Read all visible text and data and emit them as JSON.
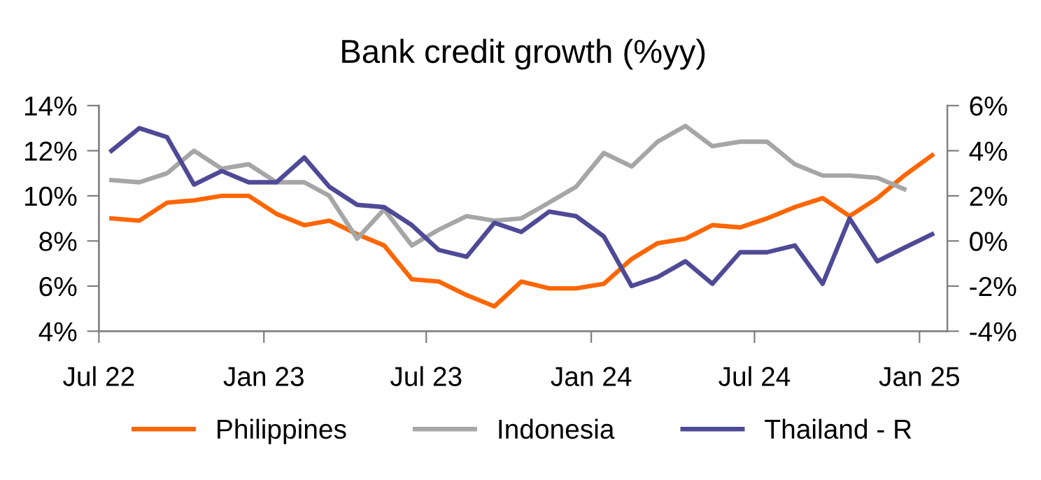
{
  "chart_data": {
    "type": "line",
    "title": "Bank credit growth (%yy)",
    "x": [
      "2022-07-15",
      "2022-08-15",
      "2022-09-15",
      "2022-10-15",
      "2022-11-15",
      "2022-12-15",
      "2023-01-15",
      "2023-02-15",
      "2023-03-15",
      "2023-04-15",
      "2023-05-15",
      "2023-06-15",
      "2023-07-15",
      "2023-08-15",
      "2023-09-15",
      "2023-10-15",
      "2023-11-15",
      "2023-12-15",
      "2024-01-15",
      "2024-02-15",
      "2024-03-15",
      "2024-04-15",
      "2024-05-15",
      "2024-06-15",
      "2024-07-15",
      "2024-08-15",
      "2024-09-15",
      "2024-10-15",
      "2024-11-15",
      "2024-12-15",
      "2025-01-15"
    ],
    "series": [
      {
        "name": "Philippines",
        "color": "#ff6600",
        "values": [
          9.0,
          8.9,
          9.7,
          9.8,
          10.0,
          10.0,
          9.2,
          8.7,
          8.9,
          8.3,
          7.8,
          6.3,
          6.2,
          5.6,
          5.1,
          6.2,
          5.9,
          5.9,
          6.1,
          7.2,
          7.9,
          8.1,
          8.7,
          8.6,
          9.0,
          9.5,
          9.9,
          9.1,
          9.9,
          10.9,
          11.8
        ]
      },
      {
        "name": "Indonesia",
        "color": "#a6a6a6",
        "values": [
          10.7,
          10.6,
          11.0,
          12.0,
          11.2,
          11.4,
          10.6,
          10.6,
          10.0,
          8.1,
          9.4,
          7.8,
          8.5,
          9.1,
          8.9,
          9.0,
          9.7,
          10.4,
          11.9,
          11.3,
          12.4,
          13.1,
          12.2,
          12.4,
          12.4,
          11.4,
          10.9,
          10.9,
          10.8,
          10.3,
          null
        ]
      },
      {
        "name": "Thailand - R",
        "color": "#4f4a96",
        "axis": "y2",
        "values": [
          4.0,
          5.0,
          4.6,
          2.5,
          3.1,
          2.6,
          2.6,
          3.7,
          2.4,
          1.6,
          1.5,
          0.7,
          -0.4,
          -0.7,
          0.8,
          0.4,
          1.3,
          1.1,
          0.2,
          -2.0,
          -1.6,
          -0.9,
          -1.9,
          -0.5,
          -0.5,
          -0.2,
          -1.9,
          1.0,
          -0.9,
          -0.3,
          0.3
        ]
      }
    ],
    "xlim": [
      "2022-07-01",
      "2025-02-01"
    ],
    "xticks": [
      {
        "value": "2022-07-01",
        "label": "Jul 22"
      },
      {
        "value": "2023-01-01",
        "label": "Jan 23"
      },
      {
        "value": "2023-07-01",
        "label": "Jul 23"
      },
      {
        "value": "2024-01-01",
        "label": "Jan 24"
      },
      {
        "value": "2024-07-01",
        "label": "Jul 24"
      },
      {
        "value": "2025-01-01",
        "label": "Jan 25"
      }
    ],
    "ylim": [
      4,
      14
    ],
    "yticks": [
      {
        "value": 4,
        "label": "4%"
      },
      {
        "value": 6,
        "label": "6%"
      },
      {
        "value": 8,
        "label": "8%"
      },
      {
        "value": 10,
        "label": "10%"
      },
      {
        "value": 12,
        "label": "12%"
      },
      {
        "value": 14,
        "label": "14%"
      }
    ],
    "y2lim": [
      -4,
      6
    ],
    "y2ticks": [
      {
        "value": -4,
        "label": "-4%"
      },
      {
        "value": -2,
        "label": "-2%"
      },
      {
        "value": 0,
        "label": "0%"
      },
      {
        "value": 2,
        "label": "2%"
      },
      {
        "value": 4,
        "label": "4%"
      },
      {
        "value": 6,
        "label": "6%"
      }
    ],
    "grid": false,
    "legend": "bottom",
    "marker": "none",
    "line_style": "solid"
  }
}
